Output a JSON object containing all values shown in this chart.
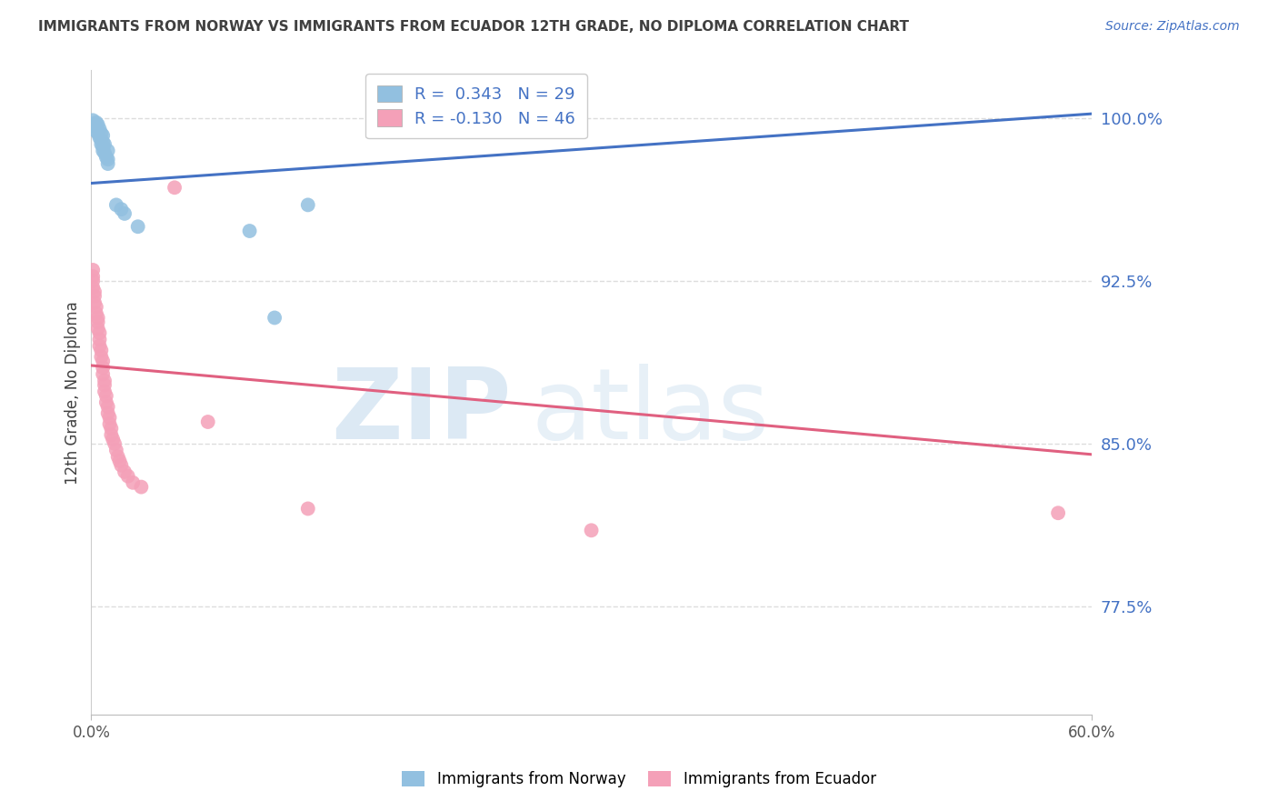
{
  "title": "IMMIGRANTS FROM NORWAY VS IMMIGRANTS FROM ECUADOR 12TH GRADE, NO DIPLOMA CORRELATION CHART",
  "source": "Source: ZipAtlas.com",
  "xmin": 0.0,
  "xmax": 0.6,
  "ymin": 0.725,
  "ymax": 1.022,
  "norway_r": "0.343",
  "norway_n": "29",
  "ecuador_r": "-0.130",
  "ecuador_n": "46",
  "norway_color": "#92C0E0",
  "ecuador_color": "#F4A0B8",
  "norway_line_color": "#4472C4",
  "ecuador_line_color": "#E06080",
  "background_color": "#FFFFFF",
  "grid_color": "#DDDDDD",
  "title_color": "#404040",
  "right_tick_color": "#4472C4",
  "ylabel": "12th Grade, No Diploma",
  "yticks": [
    1.0,
    0.925,
    0.85,
    0.775
  ],
  "ytick_labels": [
    "100.0%",
    "92.5%",
    "85.0%",
    "77.5%"
  ],
  "norway_line_x0": 0.0,
  "norway_line_y0": 0.97,
  "norway_line_x1": 0.6,
  "norway_line_y1": 1.002,
  "ecuador_line_x0": 0.0,
  "ecuador_line_y0": 0.886,
  "ecuador_line_x1": 0.6,
  "ecuador_line_y1": 0.845,
  "norway_x": [
    0.001,
    0.002,
    0.003,
    0.003,
    0.003,
    0.004,
    0.004,
    0.005,
    0.005,
    0.006,
    0.006,
    0.006,
    0.007,
    0.007,
    0.007,
    0.007,
    0.008,
    0.008,
    0.009,
    0.01,
    0.01,
    0.01,
    0.015,
    0.018,
    0.02,
    0.028,
    0.095,
    0.11,
    0.13
  ],
  "norway_y": [
    0.999,
    0.997,
    0.998,
    0.996,
    0.994,
    0.997,
    0.993,
    0.995,
    0.991,
    0.993,
    0.99,
    0.988,
    0.992,
    0.989,
    0.987,
    0.985,
    0.988,
    0.984,
    0.982,
    0.985,
    0.981,
    0.979,
    0.96,
    0.958,
    0.956,
    0.95,
    0.948,
    0.908,
    0.96
  ],
  "ecuador_x": [
    0.001,
    0.001,
    0.001,
    0.001,
    0.002,
    0.002,
    0.002,
    0.003,
    0.003,
    0.004,
    0.004,
    0.004,
    0.005,
    0.005,
    0.005,
    0.006,
    0.006,
    0.007,
    0.007,
    0.007,
    0.008,
    0.008,
    0.008,
    0.009,
    0.009,
    0.01,
    0.01,
    0.011,
    0.011,
    0.012,
    0.012,
    0.013,
    0.014,
    0.015,
    0.016,
    0.017,
    0.018,
    0.02,
    0.022,
    0.025,
    0.03,
    0.05,
    0.07,
    0.13,
    0.3,
    0.58
  ],
  "ecuador_y": [
    0.93,
    0.927,
    0.925,
    0.922,
    0.92,
    0.918,
    0.915,
    0.913,
    0.91,
    0.908,
    0.906,
    0.903,
    0.901,
    0.898,
    0.895,
    0.893,
    0.89,
    0.888,
    0.885,
    0.882,
    0.879,
    0.877,
    0.874,
    0.872,
    0.869,
    0.867,
    0.864,
    0.862,
    0.859,
    0.857,
    0.854,
    0.852,
    0.85,
    0.847,
    0.844,
    0.842,
    0.84,
    0.837,
    0.835,
    0.832,
    0.83,
    0.968,
    0.86,
    0.82,
    0.81,
    0.818
  ],
  "watermark_zip_color": "#C0D8EC",
  "watermark_atlas_color": "#C0D8EC"
}
